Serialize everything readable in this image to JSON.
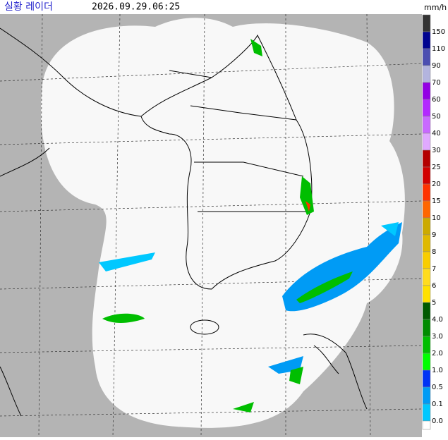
{
  "header": {
    "title": "실황 레이더",
    "timestamp": "2026.09.29.06:25",
    "unit": "mm/h"
  },
  "legend": {
    "labels": [
      "150",
      "110",
      "90",
      "70",
      "60",
      "50",
      "40",
      "30",
      "25",
      "20",
      "15",
      "10",
      "9",
      "8",
      "7",
      "6",
      "5",
      "4.0",
      "3.0",
      "2.0",
      "1.0",
      "0.5",
      "0.1",
      "0.0"
    ],
    "colors": [
      "#333333",
      "#000390",
      "#4c4eb1",
      "#b3b4de",
      "#9300e4",
      "#b329ff",
      "#c969ff",
      "#e0a9ff",
      "#b40000",
      "#d20000",
      "#ff3200",
      "#ff6600",
      "#ccaa00",
      "#e0b900",
      "#f9cd00",
      "#ffdc1f",
      "#ffe100",
      "#005a00",
      "#008c00",
      "#00be00",
      "#00ff00",
      "#0033f5",
      "#009bf5",
      "#00c8ff",
      "#ffffff"
    ]
  }
}
